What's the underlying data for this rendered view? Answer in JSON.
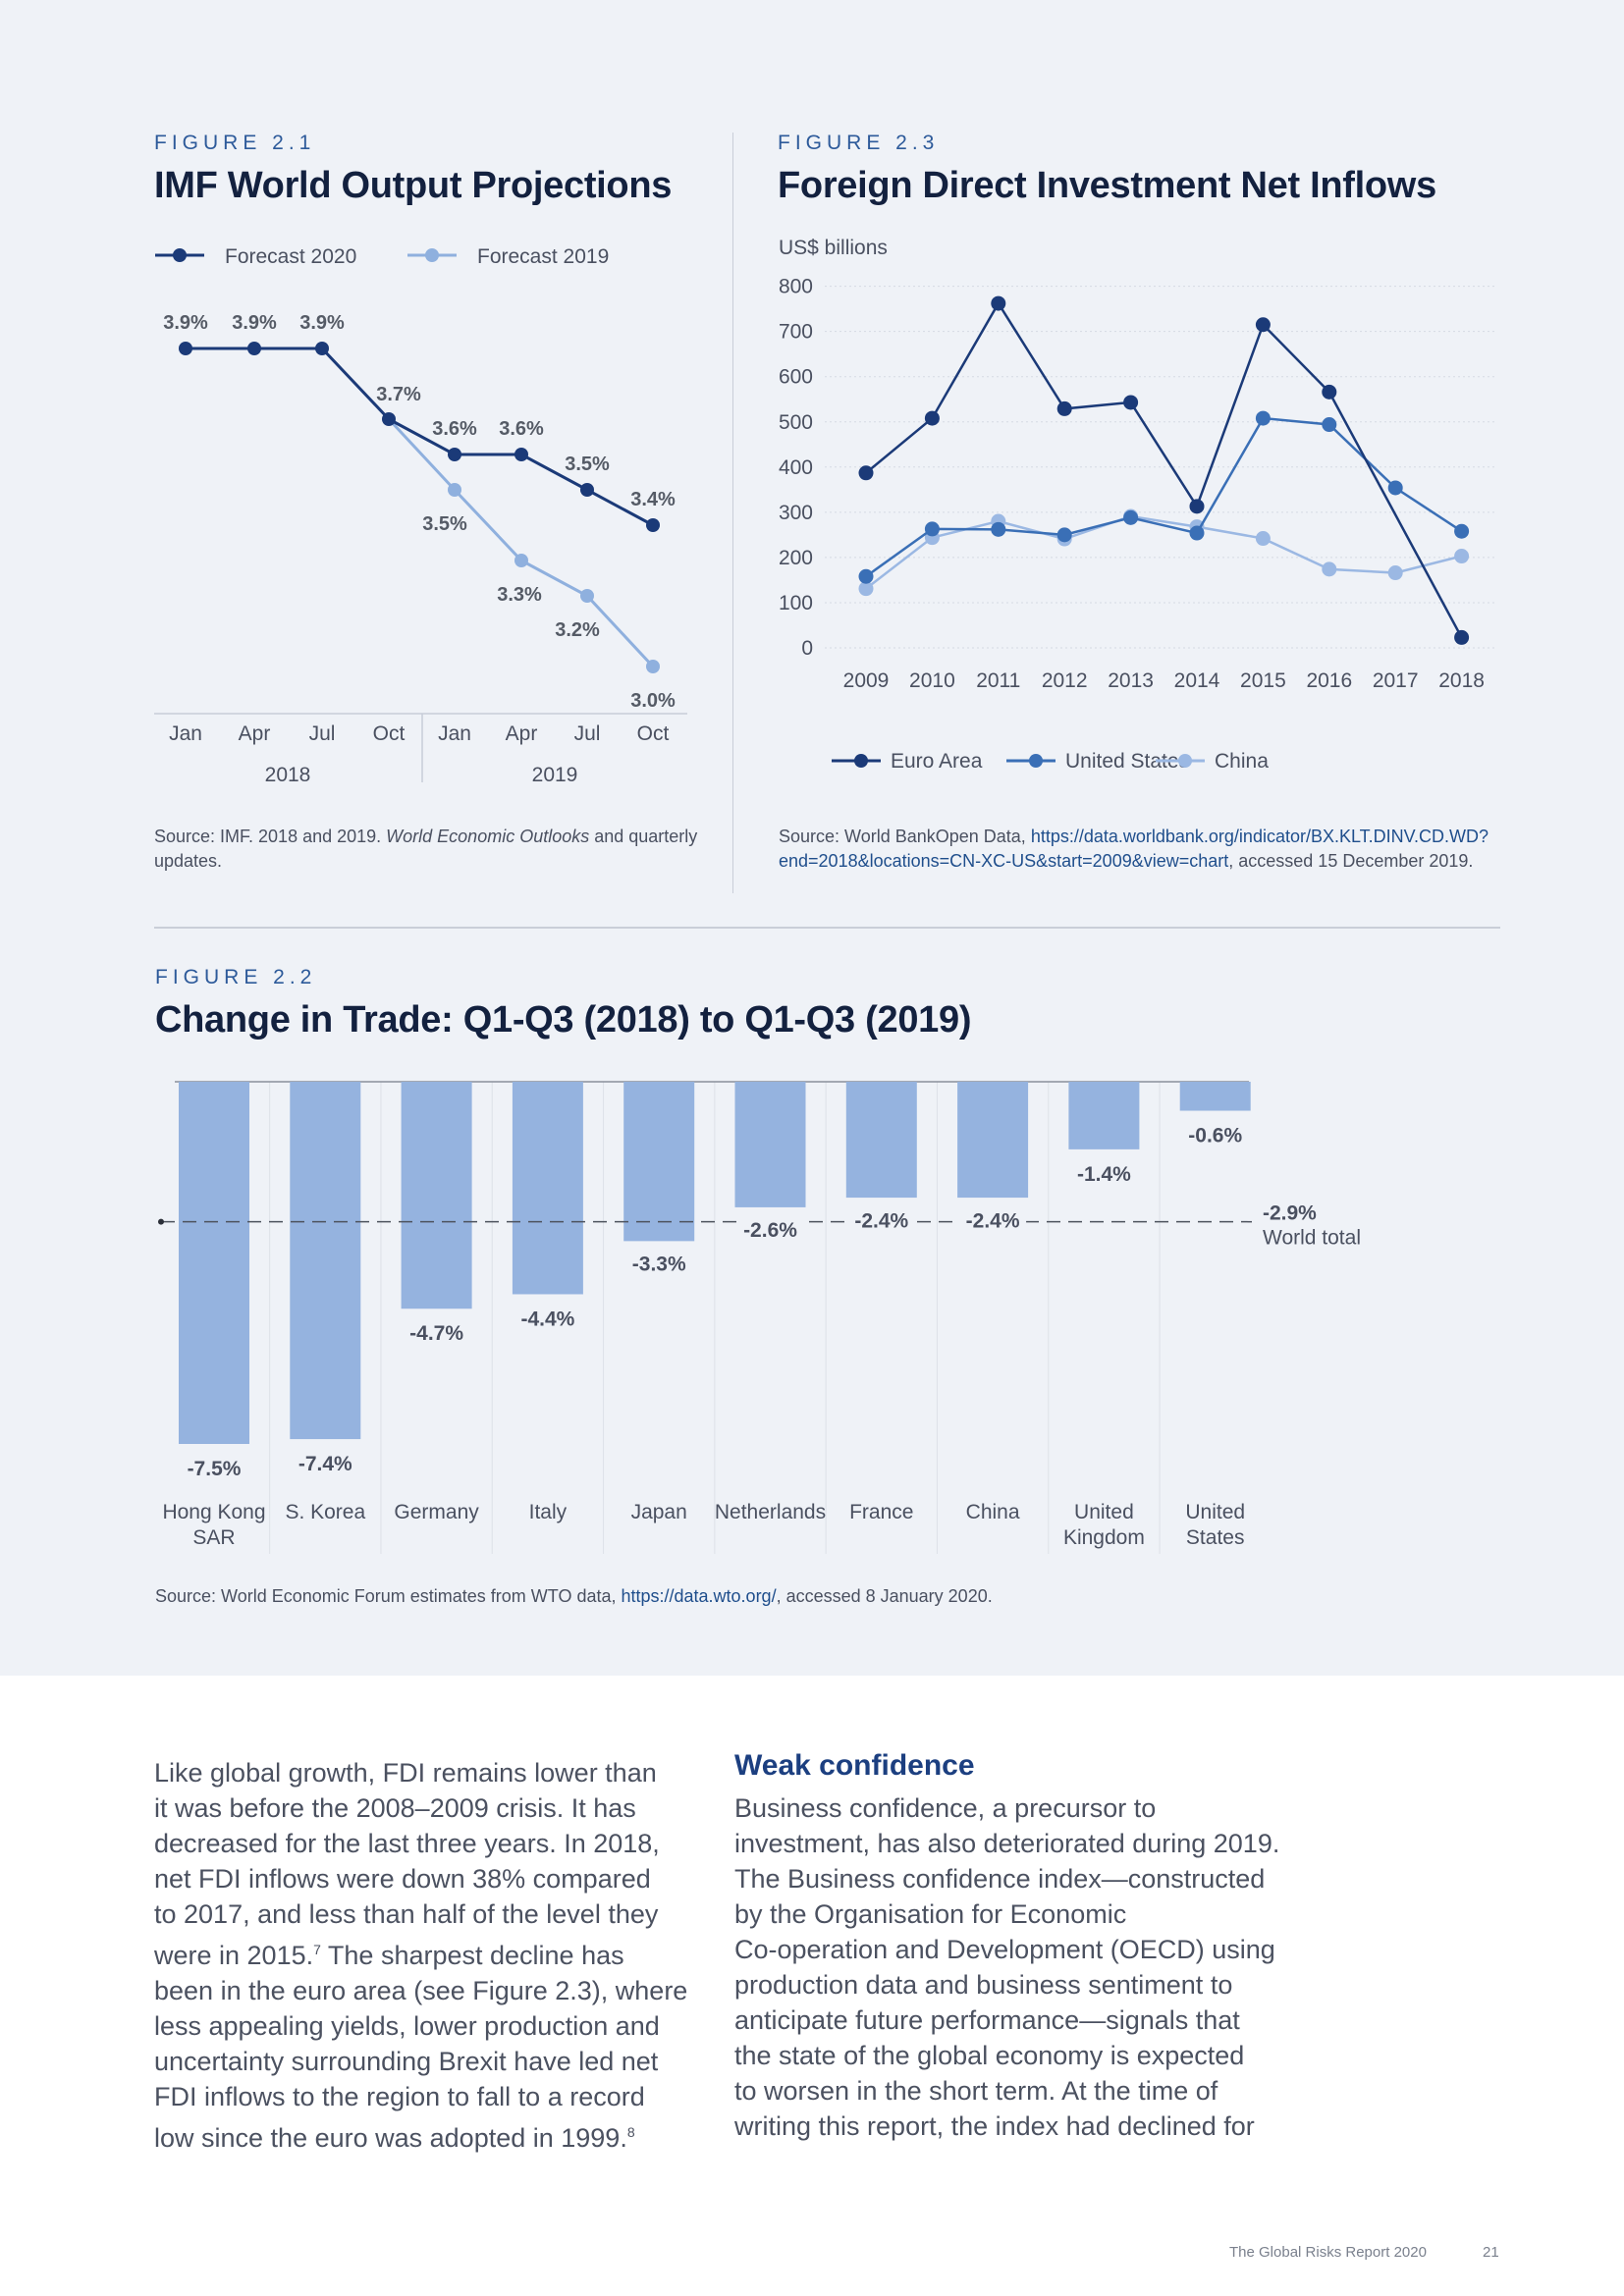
{
  "fig21": {
    "label": "FIGURE 2.1",
    "title": "IMF World Output Projections",
    "source_prefix": "Source: IMF. 2018 and 2019. ",
    "source_italic": "World Economic Outlooks",
    "source_suffix": " and quarterly updates."
  },
  "fig23": {
    "label": "FIGURE 2.3",
    "title": "Foreign Direct Investment Net Inflows",
    "source_prefix": "Source: World BankOpen Data, ",
    "source_link": "https://data.worldbank.org/indicator/BX.KLT.DINV.CD.WD?end=2018&locations=CN-XC-US&start=2009&view=chart",
    "source_suffix": ", accessed 15 December 2019."
  },
  "fig22": {
    "label": "FIGURE 2.2",
    "title": "Change in Trade: Q1-Q3 (2018) to Q1-Q3 (2019)",
    "source_prefix": "Source: World Economic Forum estimates from WTO data, ",
    "source_link": "https://data.wto.org/",
    "source_suffix": ", accessed 8 January 2020."
  },
  "chart_data": [
    {
      "type": "line",
      "title": "IMF World Output Projections",
      "categories": [
        "Jan",
        "Apr",
        "Jul",
        "Oct",
        "Jan",
        "Apr",
        "Jul",
        "Oct"
      ],
      "group_labels": [
        "2018",
        "2019"
      ],
      "series": [
        {
          "name": "Forecast 2020",
          "color": "#1b3a78",
          "values": [
            3.9,
            3.9,
            3.9,
            3.7,
            3.6,
            3.6,
            3.5,
            3.4
          ],
          "labels": [
            "3.9%",
            "3.9%",
            "3.9%",
            "3.7%",
            "3.6%",
            "3.6%",
            "3.5%",
            "3.4%"
          ]
        },
        {
          "name": "Forecast 2019",
          "color": "#8fb0de",
          "values": [
            null,
            null,
            null,
            3.7,
            3.5,
            3.3,
            3.2,
            3.0
          ],
          "labels": [
            "",
            "",
            "",
            "",
            "3.5%",
            "3.3%",
            "3.2%",
            "3.0%"
          ]
        }
      ],
      "ylim": [
        2.95,
        3.95
      ]
    },
    {
      "type": "line",
      "title": "Foreign Direct Investment Net Inflows",
      "ylabel": "US$ billions",
      "x": [
        "2009",
        "2010",
        "2011",
        "2012",
        "2013",
        "2014",
        "2015",
        "2016",
        "2017",
        "2018"
      ],
      "yticks": [
        "0",
        "100",
        "200",
        "300",
        "400",
        "500",
        "600",
        "700",
        "800"
      ],
      "ylim": [
        0,
        800
      ],
      "grid": true,
      "legend": "bottom",
      "series": [
        {
          "name": "Euro Area",
          "color": "#1b3a78",
          "values": [
            387,
            508,
            762,
            529,
            543,
            313,
            715,
            566,
            null,
            23
          ]
        },
        {
          "name": "United States",
          "color": "#3a6fb6",
          "values": [
            158,
            263,
            262,
            250,
            288,
            254,
            508,
            494,
            354,
            258
          ]
        },
        {
          "name": "China",
          "color": "#9bb8e3",
          "values": [
            131,
            244,
            280,
            241,
            291,
            268,
            242,
            174,
            166,
            203
          ]
        }
      ]
    },
    {
      "type": "bar",
      "title": "Change in Trade: Q1-Q3 (2018) to Q1-Q3 (2019)",
      "categories": [
        "Hong Kong SAR",
        "S. Korea",
        "Germany",
        "Italy",
        "Japan",
        "Netherlands",
        "France",
        "China",
        "United Kingdom",
        "United States"
      ],
      "category_lines": [
        [
          "Hong Kong",
          "SAR"
        ],
        [
          "S. Korea"
        ],
        [
          "Germany"
        ],
        [
          "Italy"
        ],
        [
          "Japan"
        ],
        [
          "Netherlands"
        ],
        [
          "France"
        ],
        [
          "China"
        ],
        [
          "United",
          "Kingdom"
        ],
        [
          "United",
          "States"
        ]
      ],
      "values": [
        -7.5,
        -7.4,
        -4.7,
        -4.4,
        -3.3,
        -2.6,
        -2.4,
        -2.4,
        -1.4,
        -0.6
      ],
      "labels": [
        "-7.5%",
        "-7.4%",
        "-4.7%",
        "-4.4%",
        "-3.3%",
        "-2.6%",
        "-2.4%",
        "-2.4%",
        "-1.4%",
        "-0.6%"
      ],
      "reference": {
        "value": -2.9,
        "label": "-2.9%",
        "name": "World total"
      },
      "ylim": [
        -8.0,
        0
      ],
      "bar_color": "#95b3df"
    }
  ],
  "body_left": [
    "Like global growth, FDI remains lower than",
    "it was before the 2008–2009 crisis. It has",
    "decreased for the last three years. In 2018,",
    "net FDI inflows were down 38% compared",
    "to 2017, and less than half of the level they",
    "were in 2015.",
    " The sharpest decline has",
    "been in the euro area (see Figure 2.3), where",
    "less appealing yields, lower production and",
    "uncertainty surrounding Brexit have led net",
    "FDI inflows to the region to fall to a record",
    "low since the euro was adopted in 1999."
  ],
  "footnotes": [
    "7",
    "8"
  ],
  "weak_confidence": {
    "heading": "Weak confidence",
    "lines": [
      "Business confidence, a precursor to",
      "investment, has also deteriorated during 2019.",
      "The Business confidence index—constructed",
      "by the Organisation for Economic",
      "Co-operation and Development (OECD) using",
      "production data and business sentiment to",
      "anticipate future performance—signals that",
      "the state of the global economy is expected",
      "to worsen in the short term. At the time of",
      "writing this report, the index had declined for"
    ]
  },
  "footer": {
    "report": "The Global Risks Report 2020",
    "page": "21"
  }
}
